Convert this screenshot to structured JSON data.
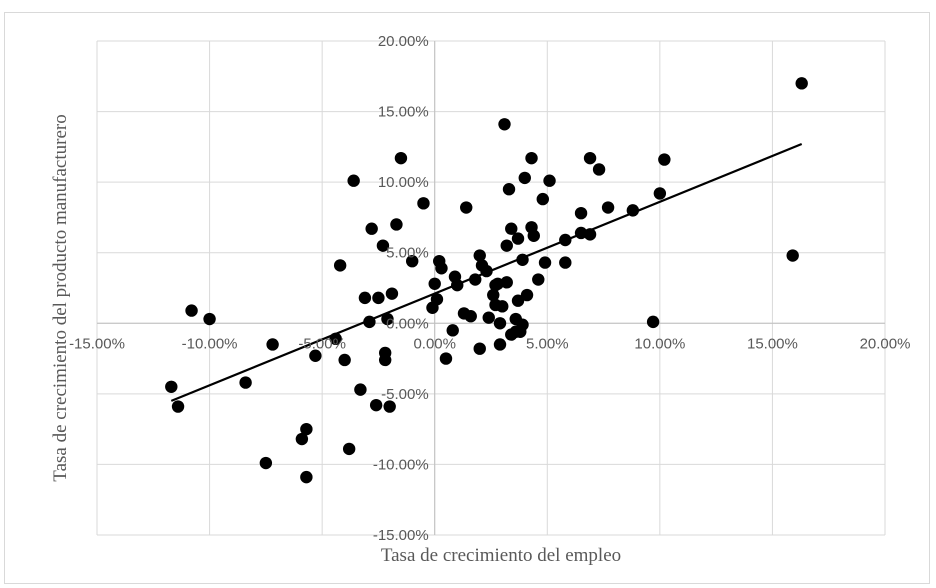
{
  "chart_data": {
    "type": "scatter",
    "title": "",
    "xlabel": "Tasa de crecimiento del empleo",
    "ylabel": "Tasa de crecimiento del producto manufacturero",
    "xlim": [
      -0.15,
      0.2
    ],
    "ylim": [
      -0.15,
      0.2
    ],
    "x_ticks": [
      -0.15,
      -0.1,
      -0.05,
      0.0,
      0.05,
      0.1,
      0.15,
      0.2
    ],
    "x_tick_labels": [
      "-15.00%",
      "-10.00%",
      "-5.00%",
      "0.00%",
      "5.00%",
      "10.00%",
      "15.00%",
      "20.00%"
    ],
    "y_ticks": [
      -0.15,
      -0.1,
      -0.05,
      0.0,
      0.05,
      0.1,
      0.15,
      0.2
    ],
    "y_tick_labels": [
      "-15.00%",
      "-10.00%",
      "-5.00%",
      "0.00%",
      "5.00%",
      "10.00%",
      "15.00%",
      "20.00%"
    ],
    "grid": true,
    "legend": "none",
    "marker_color": "#000000",
    "trendline": {
      "x": [
        -0.117,
        0.163
      ],
      "y": [
        -0.055,
        0.127
      ],
      "color": "#000000"
    },
    "series": [
      {
        "points": [
          [
            -0.117,
            -0.045
          ],
          [
            -0.114,
            -0.059
          ],
          [
            -0.108,
            0.009
          ],
          [
            -0.1,
            0.003
          ],
          [
            -0.084,
            -0.042
          ],
          [
            -0.072,
            -0.015
          ],
          [
            -0.075,
            -0.099
          ],
          [
            -0.057,
            -0.075
          ],
          [
            -0.059,
            -0.082
          ],
          [
            -0.057,
            -0.109
          ],
          [
            -0.053,
            -0.023
          ],
          [
            -0.044,
            -0.011
          ],
          [
            -0.042,
            0.041
          ],
          [
            -0.04,
            -0.026
          ],
          [
            -0.038,
            -0.089
          ],
          [
            -0.036,
            0.101
          ],
          [
            -0.033,
            -0.047
          ],
          [
            -0.031,
            0.018
          ],
          [
            -0.029,
            0.001
          ],
          [
            -0.028,
            0.067
          ],
          [
            -0.026,
            -0.058
          ],
          [
            -0.025,
            0.018
          ],
          [
            -0.023,
            0.055
          ],
          [
            -0.022,
            -0.021
          ],
          [
            -0.022,
            -0.026
          ],
          [
            -0.021,
            0.003
          ],
          [
            -0.02,
            -0.059
          ],
          [
            -0.019,
            0.021
          ],
          [
            -0.017,
            0.07
          ],
          [
            -0.015,
            0.117
          ],
          [
            -0.01,
            0.044
          ],
          [
            -0.005,
            0.085
          ],
          [
            -0.001,
            0.011
          ],
          [
            0.0,
            0.028
          ],
          [
            0.001,
            0.017
          ],
          [
            0.002,
            0.044
          ],
          [
            0.003,
            0.039
          ],
          [
            0.005,
            -0.025
          ],
          [
            0.008,
            -0.005
          ],
          [
            0.009,
            0.033
          ],
          [
            0.01,
            0.027
          ],
          [
            0.013,
            0.007
          ],
          [
            0.014,
            0.082
          ],
          [
            0.016,
            0.005
          ],
          [
            0.018,
            0.031
          ],
          [
            0.02,
            -0.018
          ],
          [
            0.02,
            0.048
          ],
          [
            0.021,
            0.041
          ],
          [
            0.023,
            0.037
          ],
          [
            0.024,
            0.004
          ],
          [
            0.026,
            0.02
          ],
          [
            0.027,
            0.027
          ],
          [
            0.027,
            0.013
          ],
          [
            0.028,
            0.028
          ],
          [
            0.029,
            0.0
          ],
          [
            0.029,
            -0.015
          ],
          [
            0.03,
            0.012
          ],
          [
            0.031,
            0.141
          ],
          [
            0.032,
            0.055
          ],
          [
            0.032,
            0.029
          ],
          [
            0.033,
            0.095
          ],
          [
            0.034,
            0.067
          ],
          [
            0.034,
            -0.008
          ],
          [
            0.036,
            0.003
          ],
          [
            0.036,
            -0.006
          ],
          [
            0.037,
            0.06
          ],
          [
            0.037,
            0.016
          ],
          [
            0.038,
            -0.006
          ],
          [
            0.039,
            -0.001
          ],
          [
            0.039,
            0.045
          ],
          [
            0.04,
            0.103
          ],
          [
            0.041,
            0.02
          ],
          [
            0.043,
            0.117
          ],
          [
            0.043,
            0.068
          ],
          [
            0.044,
            0.062
          ],
          [
            0.046,
            0.031
          ],
          [
            0.048,
            0.088
          ],
          [
            0.049,
            0.043
          ],
          [
            0.051,
            0.101
          ],
          [
            0.058,
            0.059
          ],
          [
            0.058,
            0.043
          ],
          [
            0.065,
            0.064
          ],
          [
            0.065,
            0.078
          ],
          [
            0.069,
            0.117
          ],
          [
            0.069,
            0.063
          ],
          [
            0.073,
            0.109
          ],
          [
            0.077,
            0.082
          ],
          [
            0.088,
            0.08
          ],
          [
            0.097,
            0.001
          ],
          [
            0.1,
            0.092
          ],
          [
            0.102,
            0.116
          ],
          [
            0.159,
            0.048
          ],
          [
            0.163,
            0.17
          ]
        ]
      }
    ]
  }
}
